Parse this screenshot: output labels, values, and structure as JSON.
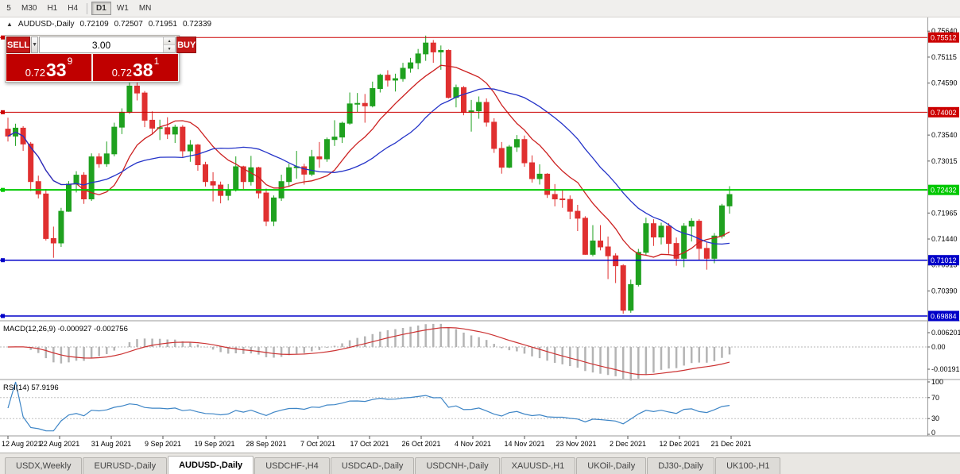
{
  "window_title": "AUDUSD-,Daily",
  "toolbar": {
    "periods": [
      "5",
      "M30",
      "H1",
      "H4",
      "D1",
      "W1",
      "MN"
    ],
    "active_period": "D1"
  },
  "chart": {
    "legend": {
      "symbol": "AUDUSD-,Daily",
      "open": "0.72109",
      "high": "0.72507",
      "low": "0.71951",
      "close": "0.72339"
    },
    "one_click": {
      "sell_label": "SELL",
      "buy_label": "BUY",
      "lot": "3.00",
      "sell_price": {
        "base": "0.72",
        "pips": "33",
        "pipette": "9"
      },
      "buy_price": {
        "base": "0.72",
        "pips": "38",
        "pipette": "1"
      }
    }
  },
  "colors": {
    "accent_red": "#c00000",
    "order_button_red": "#c41818",
    "toolbar_bg": "#f0efed",
    "tab_active_bg": "#ffffff"
  },
  "chart_data": {
    "type": "candlestick",
    "symbol": "AUDUSD-",
    "timeframe": "Daily",
    "title": "AUDUSD-,Daily",
    "candle_up_color": "#1fa11f",
    "candle_down_color": "#e03030",
    "x_labels": [
      "12 Aug 2021",
      "22 Aug 2021",
      "31 Aug 2021",
      "9 Sep 2021",
      "19 Sep 2021",
      "28 Sep 2021",
      "7 Oct 2021",
      "17 Oct 2021",
      "26 Oct 2021",
      "4 Nov 2021",
      "14 Nov 2021",
      "23 Nov 2021",
      "2 Dec 2021",
      "12 Dec 2021",
      "21 Dec 2021"
    ],
    "price_axis_ticks": [
      "0.75640",
      "0.75115",
      "0.74590",
      "0.73540",
      "0.73015",
      "0.71965",
      "0.71440",
      "0.70915",
      "0.70390"
    ],
    "hlines": [
      {
        "value": 0.75512,
        "label": "0.75512",
        "color": "#cc0000",
        "width": 1
      },
      {
        "value": 0.74002,
        "label": "0.74002",
        "color": "#cc0000",
        "width": 1
      },
      {
        "value": 0.72432,
        "label": "0.72432",
        "color": "#00c800",
        "width": 2
      },
      {
        "value": 0.71012,
        "label": "0.71012",
        "color": "#0000c8",
        "width": 1.5
      },
      {
        "value": 0.69884,
        "label": "0.69884",
        "color": "#0000c8",
        "width": 1.5
      }
    ],
    "moving_averages": [
      {
        "type": "sma",
        "period": 10,
        "color": "#cc2020"
      },
      {
        "type": "sma",
        "period": 21,
        "color": "#2433c8"
      }
    ],
    "indicators": [
      {
        "name": "MACD",
        "label": "MACD(12,26,9)",
        "values_text": "-0.000927 -0.002756",
        "fast": 12,
        "slow": 26,
        "signal": 9,
        "axis_labels": [
          "0.006201",
          "0.00",
          "-0.00191"
        ],
        "histogram_color": "#b4b4b4",
        "signal_color": "#cc3333"
      },
      {
        "name": "RSI",
        "label": "RSI(14)",
        "value_text": "57.9196",
        "period": 14,
        "axis_labels": [
          "100",
          "70",
          "30",
          "0"
        ],
        "levels": [
          70,
          30
        ],
        "line_color": "#3d85c6"
      }
    ],
    "candles": [
      [
        0.7366,
        0.7389,
        0.7341,
        0.7352
      ],
      [
        0.7352,
        0.7377,
        0.7332,
        0.7368
      ],
      [
        0.7368,
        0.7372,
        0.7322,
        0.7336
      ],
      [
        0.7336,
        0.734,
        0.7241,
        0.726
      ],
      [
        0.726,
        0.7272,
        0.7226,
        0.7235
      ],
      [
        0.7235,
        0.7245,
        0.7141,
        0.7145
      ],
      [
        0.7145,
        0.7169,
        0.7106,
        0.7136
      ],
      [
        0.7136,
        0.7207,
        0.7128,
        0.72
      ],
      [
        0.72,
        0.7261,
        0.7199,
        0.7255
      ],
      [
        0.7255,
        0.7281,
        0.7238,
        0.7273
      ],
      [
        0.7273,
        0.7279,
        0.7215,
        0.7225
      ],
      [
        0.7225,
        0.7317,
        0.7221,
        0.731
      ],
      [
        0.731,
        0.7317,
        0.7288,
        0.7296
      ],
      [
        0.7296,
        0.7341,
        0.729,
        0.7316
      ],
      [
        0.7316,
        0.7379,
        0.7311,
        0.737
      ],
      [
        0.737,
        0.7408,
        0.7356,
        0.74
      ],
      [
        0.74,
        0.7478,
        0.7397,
        0.7453
      ],
      [
        0.7453,
        0.7462,
        0.7424,
        0.7439
      ],
      [
        0.7439,
        0.7443,
        0.737,
        0.7384
      ],
      [
        0.7384,
        0.7402,
        0.7355,
        0.7368
      ],
      [
        0.7368,
        0.7385,
        0.7344,
        0.7369
      ],
      [
        0.7369,
        0.739,
        0.7346,
        0.7356
      ],
      [
        0.7356,
        0.7375,
        0.7338,
        0.737
      ],
      [
        0.737,
        0.7374,
        0.731,
        0.7322
      ],
      [
        0.7322,
        0.7344,
        0.73,
        0.7334
      ],
      [
        0.7334,
        0.7336,
        0.7282,
        0.7294
      ],
      [
        0.7294,
        0.73,
        0.725,
        0.726
      ],
      [
        0.726,
        0.7279,
        0.722,
        0.7253
      ],
      [
        0.7253,
        0.726,
        0.7216,
        0.7232
      ],
      [
        0.7232,
        0.7255,
        0.7222,
        0.7243
      ],
      [
        0.7243,
        0.7311,
        0.724,
        0.729
      ],
      [
        0.729,
        0.7292,
        0.7245,
        0.726
      ],
      [
        0.726,
        0.7312,
        0.7252,
        0.7288
      ],
      [
        0.7288,
        0.729,
        0.7226,
        0.7237
      ],
      [
        0.7237,
        0.7246,
        0.717,
        0.718
      ],
      [
        0.718,
        0.7232,
        0.717,
        0.7227
      ],
      [
        0.7227,
        0.7274,
        0.7221,
        0.726
      ],
      [
        0.726,
        0.7296,
        0.725,
        0.7288
      ],
      [
        0.7288,
        0.7322,
        0.7266,
        0.729
      ],
      [
        0.729,
        0.7296,
        0.7254,
        0.7275
      ],
      [
        0.7275,
        0.7324,
        0.7271,
        0.731
      ],
      [
        0.731,
        0.734,
        0.7288,
        0.7306
      ],
      [
        0.7306,
        0.7349,
        0.73,
        0.7345
      ],
      [
        0.7345,
        0.7384,
        0.7332,
        0.735
      ],
      [
        0.735,
        0.7381,
        0.7338,
        0.7378
      ],
      [
        0.7378,
        0.744,
        0.7375,
        0.7417
      ],
      [
        0.7417,
        0.7439,
        0.74,
        0.7418
      ],
      [
        0.7418,
        0.7437,
        0.7379,
        0.7413
      ],
      [
        0.7413,
        0.7462,
        0.741,
        0.7448
      ],
      [
        0.7448,
        0.7478,
        0.744,
        0.7475
      ],
      [
        0.7475,
        0.7485,
        0.7452,
        0.7465
      ],
      [
        0.7465,
        0.7478,
        0.7442,
        0.7468
      ],
      [
        0.7468,
        0.75,
        0.7462,
        0.7489
      ],
      [
        0.7489,
        0.751,
        0.748,
        0.75
      ],
      [
        0.75,
        0.7528,
        0.7487,
        0.7518
      ],
      [
        0.7518,
        0.7555,
        0.7504,
        0.754
      ],
      [
        0.754,
        0.7546,
        0.75,
        0.7522
      ],
      [
        0.7522,
        0.7535,
        0.7486,
        0.7525
      ],
      [
        0.7525,
        0.7527,
        0.7428,
        0.743
      ],
      [
        0.743,
        0.7456,
        0.741,
        0.745
      ],
      [
        0.745,
        0.7453,
        0.7394,
        0.74
      ],
      [
        0.74,
        0.7425,
        0.7361,
        0.7403
      ],
      [
        0.7403,
        0.7432,
        0.7387,
        0.742
      ],
      [
        0.742,
        0.7428,
        0.7371,
        0.738
      ],
      [
        0.738,
        0.7388,
        0.7318,
        0.7327
      ],
      [
        0.7327,
        0.734,
        0.7276,
        0.7289
      ],
      [
        0.7289,
        0.7334,
        0.7287,
        0.733
      ],
      [
        0.733,
        0.7354,
        0.732,
        0.7345
      ],
      [
        0.7345,
        0.7353,
        0.729,
        0.7298
      ],
      [
        0.7298,
        0.7313,
        0.7258,
        0.7266
      ],
      [
        0.7266,
        0.7295,
        0.7254,
        0.7275
      ],
      [
        0.7275,
        0.7277,
        0.7227,
        0.7234
      ],
      [
        0.7234,
        0.7255,
        0.721,
        0.7225
      ],
      [
        0.7225,
        0.7244,
        0.7207,
        0.7224
      ],
      [
        0.7224,
        0.7232,
        0.7184,
        0.72
      ],
      [
        0.72,
        0.7213,
        0.716,
        0.7186
      ],
      [
        0.7186,
        0.719,
        0.7112,
        0.7113
      ],
      [
        0.7113,
        0.7172,
        0.7109,
        0.714
      ],
      [
        0.714,
        0.7172,
        0.7121,
        0.7128
      ],
      [
        0.7128,
        0.7149,
        0.7063,
        0.711
      ],
      [
        0.711,
        0.7115,
        0.7055,
        0.709
      ],
      [
        0.709,
        0.7093,
        0.6993,
        0.7
      ],
      [
        0.7,
        0.7062,
        0.6995,
        0.7052
      ],
      [
        0.7052,
        0.7124,
        0.7048,
        0.7117
      ],
      [
        0.7117,
        0.7187,
        0.7112,
        0.7175
      ],
      [
        0.7175,
        0.7184,
        0.713,
        0.7148
      ],
      [
        0.7148,
        0.7177,
        0.7133,
        0.717
      ],
      [
        0.717,
        0.7176,
        0.7114,
        0.7135
      ],
      [
        0.7135,
        0.7147,
        0.709,
        0.7105
      ],
      [
        0.7105,
        0.7176,
        0.7087,
        0.717
      ],
      [
        0.717,
        0.7186,
        0.7139,
        0.718
      ],
      [
        0.718,
        0.7184,
        0.7102,
        0.7125
      ],
      [
        0.7125,
        0.7139,
        0.7082,
        0.7105
      ],
      [
        0.7105,
        0.7156,
        0.7095,
        0.715
      ],
      [
        0.715,
        0.7215,
        0.7145,
        0.7211
      ],
      [
        0.72109,
        0.72507,
        0.71951,
        0.72339
      ]
    ]
  },
  "bottom_tabs": {
    "active": "AUDUSD-,Daily",
    "tabs": [
      "USDX,Weekly",
      "EURUSD-,Daily",
      "AUDUSD-,Daily",
      "USDCHF-,H4",
      "USDCAD-,Daily",
      "USDCNH-,Daily",
      "XAUUSD-,H1",
      "UKOil-,Daily",
      "DJ30-,Daily",
      "UK100-,H1"
    ]
  }
}
